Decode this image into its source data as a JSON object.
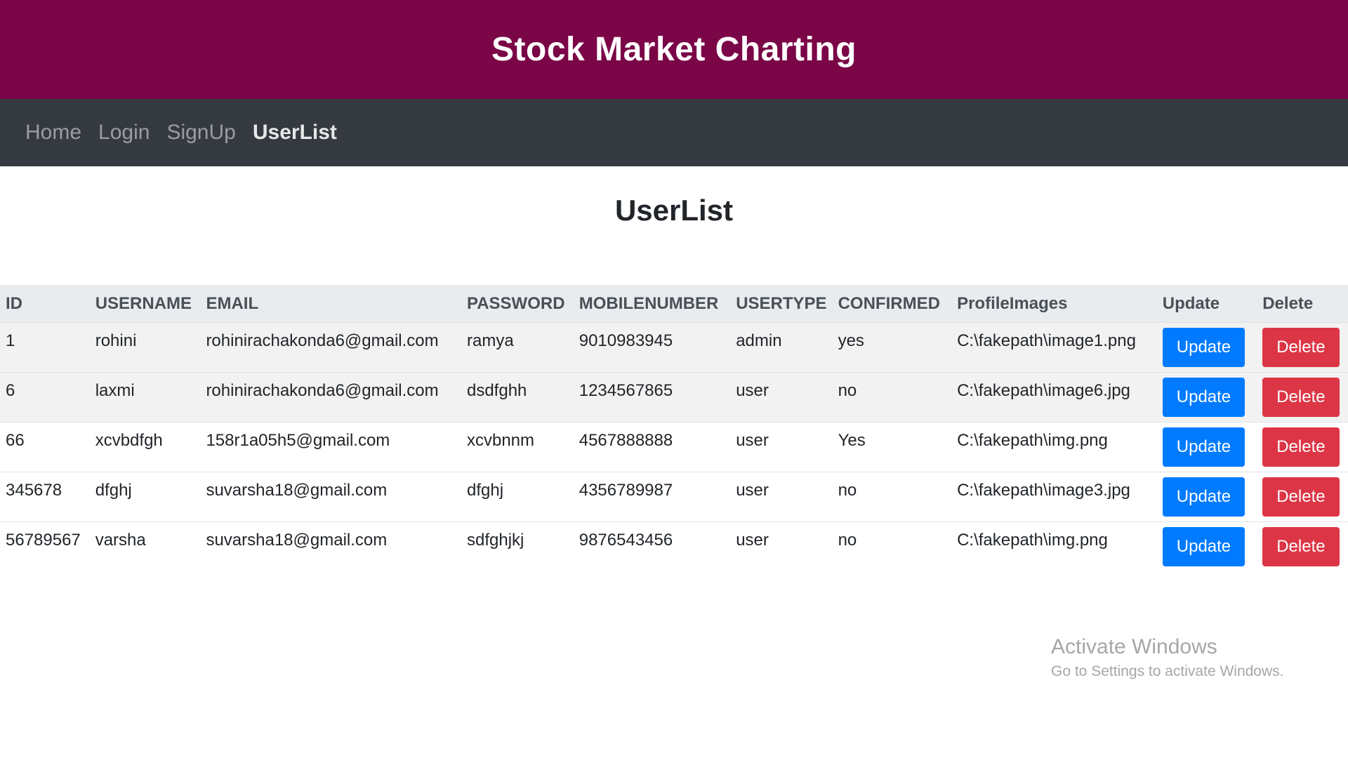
{
  "header": {
    "title": "Stock Market Charting"
  },
  "nav": {
    "items": [
      {
        "label": "Home"
      },
      {
        "label": "Login"
      },
      {
        "label": "SignUp"
      },
      {
        "label": "UserList"
      }
    ],
    "active": "UserList"
  },
  "page": {
    "title": "UserList"
  },
  "table": {
    "columns": [
      "ID",
      "USERNAME",
      "EMAIL",
      "PASSWORD",
      "MOBILENUMBER",
      "USERTYPE",
      "CONFIRMED",
      "ProfileImages",
      "Update",
      "Delete"
    ],
    "rows": [
      {
        "id": "1",
        "username": "rohini",
        "email": "rohinirachakonda6@gmail.com",
        "password": "ramya",
        "mobile": "9010983945",
        "usertype": "admin",
        "confirmed": "yes",
        "image": "C:\\fakepath\\image1.png",
        "update_label": "Update",
        "delete_label": "Delete"
      },
      {
        "id": "6",
        "username": "laxmi",
        "email": "rohinirachakonda6@gmail.com",
        "password": "dsdfghh",
        "mobile": "1234567865",
        "usertype": "user",
        "confirmed": "no",
        "image": "C:\\fakepath\\image6.jpg",
        "update_label": "Update",
        "delete_label": "Delete"
      },
      {
        "id": "66",
        "username": "xcvbdfgh",
        "email": "158r1a05h5@gmail.com",
        "password": "xcvbnnm",
        "mobile": "4567888888",
        "usertype": "user",
        "confirmed": "Yes",
        "image": "C:\\fakepath\\img.png",
        "update_label": "Update",
        "delete_label": "Delete"
      },
      {
        "id": "345678",
        "username": "dfghj",
        "email": "suvarsha18@gmail.com",
        "password": "dfghj",
        "mobile": "4356789987",
        "usertype": "user",
        "confirmed": "no",
        "image": "C:\\fakepath\\image3.jpg",
        "update_label": "Update",
        "delete_label": "Delete"
      },
      {
        "id": "56789567",
        "username": "varsha",
        "email": "suvarsha18@gmail.com",
        "password": "sdfghjkj",
        "mobile": "9876543456",
        "usertype": "user",
        "confirmed": "no",
        "image": "C:\\fakepath\\img.png",
        "update_label": "Update",
        "delete_label": "Delete"
      }
    ]
  },
  "watermark": {
    "title": "Activate Windows",
    "subtitle": "Go to Settings to activate Windows."
  },
  "colors": {
    "header_bg": "#7a0547",
    "nav_bg": "#343a40",
    "update_button": "#007bff",
    "delete_button": "#dc3545"
  }
}
